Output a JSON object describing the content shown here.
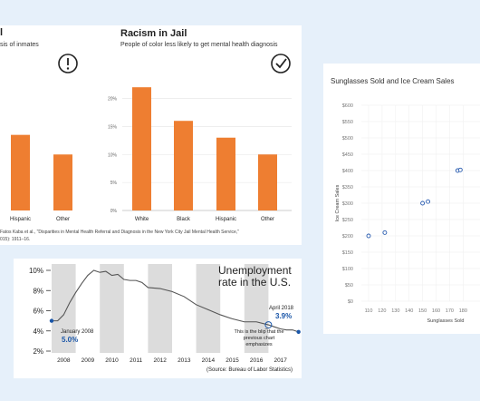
{
  "panels": {
    "left_partial": {
      "title_fragment": "l",
      "subtitle_fragment": "sis of inmates",
      "icon": "exclamation-circle-icon",
      "bar_color": "#ee7e31",
      "categories": [
        "Hispanic",
        "Other"
      ],
      "values": [
        13.5,
        10
      ]
    },
    "racism": {
      "title": "Racism in Jail",
      "subtitle": "People of color less likely to get mental health diagnosis",
      "icon": "checkmark-circle-icon",
      "bar_color": "#ee7e31"
    },
    "source_note": {
      "line1": "Fatos Kaba et al., \"Disparities in Mental Health Referral and Diagnosis in the New York City Jail Mental Health Service,\"",
      "line2": "015): 1911–16."
    },
    "unemployment": {
      "title_line1": "Unemployment",
      "title_line2": "rate in the U.S.",
      "annotation_start_label": "January 2008",
      "annotation_start_value": "5.0%",
      "annotation_end_label": "April 2018",
      "annotation_end_value": "3.9%",
      "annotation_blip": "This is the blip that the previous chart emphasizes",
      "source": "(Source: Bureau of Labor Statistics)",
      "line_color": "#555555",
      "accent_color": "#1a56a8",
      "band_color": "#dcdcdc"
    },
    "sunglasses": {
      "title": "Sunglasses Sold and Ice Cream Sales",
      "point_color": "#2a5db0"
    }
  },
  "chart_data": [
    {
      "type": "bar",
      "title": "Racism in Jail",
      "subtitle": "People of color less likely to get mental health diagnosis",
      "categories": [
        "White",
        "Black",
        "Hispanic",
        "Other"
      ],
      "values": [
        22,
        16,
        13,
        10
      ],
      "ylim": [
        0,
        23
      ],
      "yticks": [
        "0%",
        "5%",
        "10%",
        "15%",
        "20%"
      ],
      "grid": true
    },
    {
      "type": "line",
      "title": "Unemployment rate in the U.S.",
      "x": [
        2008.0,
        2008.25,
        2008.5,
        2008.75,
        2009.0,
        2009.25,
        2009.5,
        2009.75,
        2010.0,
        2010.25,
        2010.5,
        2010.75,
        2011.0,
        2011.25,
        2011.5,
        2011.75,
        2012.0,
        2012.5,
        2013.0,
        2013.5,
        2014.0,
        2014.5,
        2015.0,
        2015.5,
        2016.0,
        2016.5,
        2017.0,
        2017.25,
        2017.5,
        2017.75,
        2018.0,
        2018.25
      ],
      "values": [
        5.0,
        5.0,
        5.6,
        6.8,
        7.8,
        8.7,
        9.5,
        10.0,
        9.8,
        9.9,
        9.5,
        9.6,
        9.1,
        9.0,
        9.0,
        8.8,
        8.3,
        8.2,
        7.9,
        7.4,
        6.6,
        6.1,
        5.6,
        5.2,
        4.9,
        4.9,
        4.6,
        4.4,
        4.2,
        4.1,
        4.1,
        3.9
      ],
      "xticks": [
        "2008",
        "2009",
        "2010",
        "2011",
        "2012",
        "2013",
        "2014",
        "2015",
        "2016",
        "2017"
      ],
      "yticks": [
        "2%",
        "4%",
        "6%",
        "8%",
        "10%"
      ],
      "ylim": [
        2,
        10
      ],
      "grid": false
    },
    {
      "type": "scatter",
      "title": "Sunglasses Sold and Ice Cream Sales",
      "xlabel": "Sunglasses Sold",
      "ylabel": "Ice Cream Sales",
      "x": [
        110,
        122,
        150,
        154,
        176,
        178
      ],
      "y": [
        200,
        210,
        300,
        305,
        400,
        402
      ],
      "xticks": [
        "110",
        "120",
        "130",
        "140",
        "150",
        "160",
        "170",
        "180"
      ],
      "yticks": [
        "$0",
        "$50",
        "$100",
        "$150",
        "$200",
        "$250",
        "$300",
        "$350",
        "$400",
        "$450",
        "$500",
        "$550",
        "$600"
      ],
      "ylim": [
        0,
        600
      ],
      "grid": true
    }
  ]
}
